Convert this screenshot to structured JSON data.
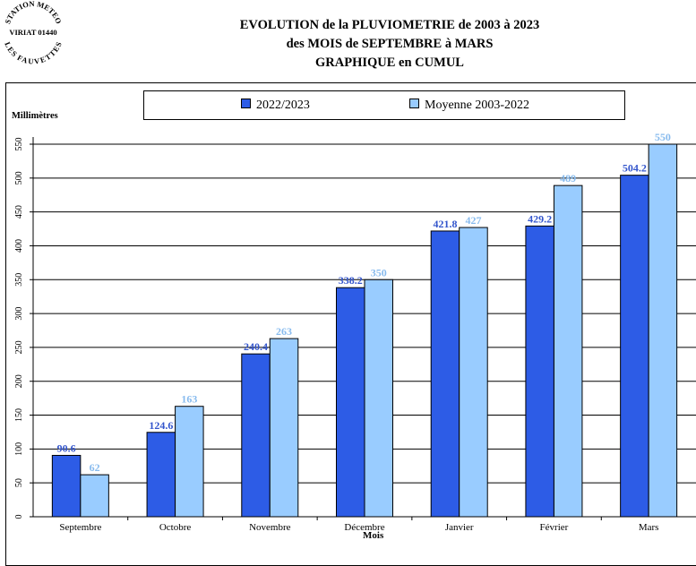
{
  "logo": {
    "top_text": "STATION METEO",
    "middle_text": "VIRIAT 01440",
    "bottom_text": "LES FAUVETTES"
  },
  "title": {
    "line1": "EVOLUTION de la PLUVIOMETRIE de 2003 à 2023",
    "line2": "des MOIS de SEPTEMBRE à MARS",
    "line3": "GRAPHIQUE en CUMUL"
  },
  "colors": {
    "series1": "#2d5ce6",
    "series2": "#99ccff",
    "label1": "#3355cc",
    "label2": "#88bbee"
  },
  "chart_data": {
    "type": "bar",
    "ylabel": "Millimètres",
    "xlabel": "Mois",
    "ylim": [
      0,
      550
    ],
    "yticks": [
      0,
      50,
      100,
      150,
      200,
      250,
      300,
      350,
      400,
      450,
      500,
      550
    ],
    "grid": true,
    "legend_position": "top",
    "categories": [
      "Septembre",
      "Octobre",
      "Novembre",
      "Décembre",
      "Janvier",
      "Février",
      "Mars"
    ],
    "series": [
      {
        "name": "2022/2023",
        "values": [
          90.6,
          124.6,
          240.4,
          338.2,
          421.8,
          429.2,
          504.2
        ]
      },
      {
        "name": "Moyenne 2003-2022",
        "values": [
          62,
          163,
          263,
          350,
          427,
          489,
          550
        ]
      }
    ]
  }
}
